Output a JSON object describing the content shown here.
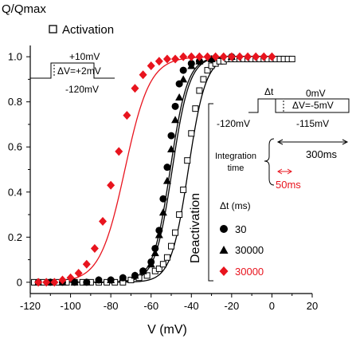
{
  "chart_data": {
    "type": "scatter",
    "title": "",
    "xlabel": "V (mV)",
    "ylabel": "Q/Qmax",
    "xlim": [
      -120,
      20
    ],
    "ylim": [
      -0.05,
      1.05
    ],
    "xticks": [
      -120,
      -100,
      -80,
      -60,
      -40,
      -20,
      0,
      20
    ],
    "yticks": [
      0,
      0.2,
      0.4,
      0.6,
      0.8,
      1.0
    ],
    "xtick_labels": [
      "-120",
      "-100",
      "-80",
      "-60",
      "-40",
      "-20",
      "0",
      "20"
    ],
    "ytick_labels": [
      "0",
      "0.2",
      "0.4",
      "0.6",
      "0.8",
      "1.0"
    ],
    "grid": false,
    "legend_position": "top-left and right",
    "series": [
      {
        "name": "Activation",
        "marker": "open-square",
        "color": "#000000",
        "x": [
          -118,
          -114,
          -110,
          -106,
          -102,
          -98,
          -94,
          -90,
          -86,
          -82,
          -78,
          -74,
          -70,
          -66,
          -62,
          -58,
          -56,
          -54,
          -52,
          -50,
          -48,
          -46,
          -44,
          -42,
          -40,
          -38,
          -36,
          -34,
          -32,
          -30,
          -28,
          -26,
          -24,
          -22,
          -20,
          -18,
          -16,
          -14,
          -12,
          -10,
          -8,
          -6,
          -4,
          -2,
          0,
          2,
          4,
          6,
          8,
          10
        ],
        "y": [
          0,
          0,
          0,
          0,
          0,
          0,
          0,
          0,
          0,
          0,
          0,
          0,
          0.01,
          0.02,
          0.03,
          0.05,
          0.06,
          0.08,
          0.11,
          0.16,
          0.22,
          0.3,
          0.41,
          0.54,
          0.66,
          0.77,
          0.85,
          0.9,
          0.94,
          0.96,
          0.97,
          0.98,
          0.98,
          0.99,
          0.99,
          0.99,
          0.99,
          0.99,
          0.99,
          0.99,
          0.99,
          0.99,
          0.99,
          0.99,
          0.99,
          0.99,
          0.99,
          0.99,
          0.99,
          0.99
        ],
        "fit_midpoint": -41.5,
        "fit_slope": 4.3
      },
      {
        "name": "30",
        "marker": "filled-circle",
        "color": "#000000",
        "x": [
          -116,
          -110,
          -104,
          -98,
          -92,
          -86,
          -80,
          -74,
          -68,
          -64,
          -60,
          -58,
          -56,
          -54,
          -52,
          -50,
          -48,
          -46,
          -44,
          -40,
          -36,
          -30,
          -20
        ],
        "y": [
          0,
          0,
          0,
          0,
          0,
          0.01,
          0.01,
          0.02,
          0.03,
          0.05,
          0.09,
          0.15,
          0.23,
          0.37,
          0.51,
          0.65,
          0.78,
          0.88,
          0.94,
          0.97,
          0.98,
          0.99,
          1.0
        ],
        "fit_midpoint": -50.5,
        "fit_slope": 4.3
      },
      {
        "name": "30000",
        "marker": "filled-triangle",
        "color": "#000000",
        "x": [
          -116,
          -110,
          -104,
          -98,
          -92,
          -86,
          -80,
          -74,
          -68,
          -64,
          -60,
          -58,
          -56,
          -54,
          -52,
          -50,
          -48,
          -46,
          -44,
          -40,
          -36,
          -30,
          -20
        ],
        "y": [
          0,
          0,
          0,
          0,
          0,
          0.01,
          0.01,
          0.02,
          0.03,
          0.05,
          0.08,
          0.13,
          0.21,
          0.31,
          0.45,
          0.59,
          0.72,
          0.82,
          0.9,
          0.96,
          0.98,
          0.99,
          1.0
        ],
        "fit_midpoint": -49.5,
        "fit_slope": 4.3
      },
      {
        "name": "30000",
        "marker": "filled-diamond",
        "color": "#e8141e",
        "x": [
          -116,
          -112,
          -108,
          -104,
          -100,
          -96,
          -92,
          -88,
          -84,
          -80,
          -76,
          -72,
          -68,
          -64,
          -60,
          -56,
          -52,
          -48,
          -44,
          -40,
          -36,
          -32,
          -28,
          -24,
          -20,
          -16,
          -12,
          -8,
          -4,
          0
        ],
        "y": [
          0,
          0,
          0,
          0.01,
          0.02,
          0.04,
          0.08,
          0.15,
          0.27,
          0.43,
          0.58,
          0.74,
          0.86,
          0.92,
          0.96,
          0.98,
          0.99,
          0.99,
          1.0,
          1.0,
          1.0,
          1.0,
          1.0,
          1.0,
          1.0,
          1.0,
          1.0,
          1.0,
          1.0,
          1.0
        ],
        "fit_midpoint": -73,
        "fit_slope": 6.2
      }
    ]
  },
  "legend": {
    "activation_label": "Activation",
    "deactivation_label": "Deactivation",
    "dt_header": "Δt (ms)"
  },
  "inset_activation": {
    "top_label": "+10mV",
    "step_label": "ΔV=+2mV",
    "bottom_label": "-120mV"
  },
  "inset_deactivation": {
    "dt_label": "Δt",
    "hold_label": "0mV",
    "step_label": "ΔV=-5mV",
    "pre_label": "-120mV",
    "end_label": "-115mV",
    "integration_line1": "Integration",
    "integration_line2": "time",
    "black_duration": "300ms",
    "red_duration": "50ms"
  },
  "colors": {
    "red": "#e8141e",
    "black": "#000000"
  }
}
